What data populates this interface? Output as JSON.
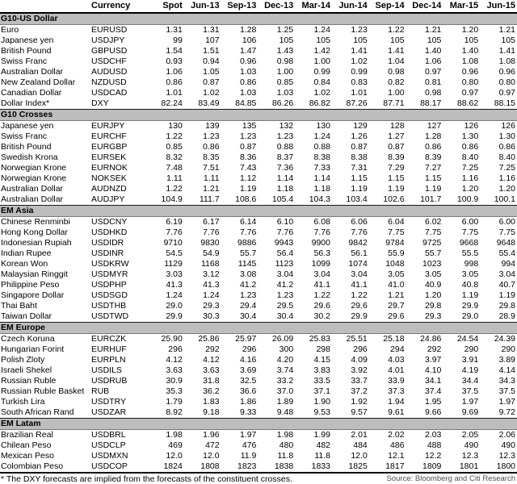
{
  "table": {
    "columns": [
      "",
      "Currency",
      "Spot",
      "Jun-13",
      "Sep-13",
      "Dec-13",
      "Mar-14",
      "Jun-14",
      "Sep-14",
      "Dec-14",
      "Mar-15",
      "Jun-15"
    ],
    "sections": [
      {
        "label": "G10-US Dollar",
        "rows": [
          {
            "name": "Euro",
            "code": "EURUSD",
            "values": [
              "1.31",
              "1.31",
              "1.28",
              "1.25",
              "1.24",
              "1.23",
              "1.22",
              "1.21",
              "1.20",
              "1.21"
            ]
          },
          {
            "name": "Japanese yen",
            "code": "USDJPY",
            "values": [
              "99",
              "107",
              "106",
              "105",
              "105",
              "105",
              "105",
              "105",
              "105",
              "105"
            ]
          },
          {
            "name": "British Pound",
            "code": "GBPUSD",
            "values": [
              "1.54",
              "1.51",
              "1.47",
              "1.43",
              "1.42",
              "1.41",
              "1.41",
              "1.40",
              "1.40",
              "1.41"
            ]
          },
          {
            "name": "Swiss Franc",
            "code": "USDCHF",
            "values": [
              "0.93",
              "0.94",
              "0.96",
              "0.98",
              "1.00",
              "1.02",
              "1.04",
              "1.06",
              "1.08",
              "1.08"
            ]
          },
          {
            "name": "Australian Dollar",
            "code": "AUDUSD",
            "values": [
              "1.06",
              "1.05",
              "1.03",
              "1.00",
              "0.99",
              "0.99",
              "0.98",
              "0.97",
              "0.96",
              "0.96"
            ]
          },
          {
            "name": "New Zealand Dollar",
            "code": "NZDUSD",
            "values": [
              "0.86",
              "0.87",
              "0.86",
              "0.85",
              "0.84",
              "0.83",
              "0.82",
              "0.81",
              "0.80",
              "0.80"
            ]
          },
          {
            "name": "Canadian Dollar",
            "code": "USDCAD",
            "values": [
              "1.01",
              "1.02",
              "1.03",
              "1.03",
              "1.02",
              "1.01",
              "1.00",
              "0.98",
              "0.97",
              "0.97"
            ]
          },
          {
            "name": "Dollar Index*",
            "code": "DXY",
            "values": [
              "82.24",
              "83.49",
              "84.85",
              "86.26",
              "86.82",
              "87.26",
              "87.71",
              "88.17",
              "88.62",
              "88.15"
            ]
          }
        ]
      },
      {
        "label": "G10 Crosses",
        "rows": [
          {
            "name": "Japanese yen",
            "code": "EURJPY",
            "values": [
              "130",
              "139",
              "135",
              "132",
              "130",
              "129",
              "128",
              "127",
              "126",
              "126"
            ]
          },
          {
            "name": "Swiss Franc",
            "code": "EURCHF",
            "values": [
              "1.22",
              "1.23",
              "1.23",
              "1.23",
              "1.24",
              "1.26",
              "1.27",
              "1.28",
              "1.30",
              "1.30"
            ]
          },
          {
            "name": "British Pound",
            "code": "EURGBP",
            "values": [
              "0.85",
              "0.86",
              "0.87",
              "0.88",
              "0.88",
              "0.87",
              "0.87",
              "0.86",
              "0.86",
              "0.86"
            ]
          },
          {
            "name": "Swedish Krona",
            "code": "EURSEK",
            "values": [
              "8.32",
              "8.35",
              "8.36",
              "8.37",
              "8.38",
              "8.38",
              "8.39",
              "8.39",
              "8.40",
              "8.40"
            ]
          },
          {
            "name": "Norwegian Krone",
            "code": "EURNOK",
            "values": [
              "7.48",
              "7.51",
              "7.43",
              "7.36",
              "7.33",
              "7.31",
              "7.29",
              "7.27",
              "7.25",
              "7.25"
            ]
          },
          {
            "name": "Norwegian Krone",
            "code": "NOKSEK",
            "values": [
              "1.11",
              "1.11",
              "1.12",
              "1.14",
              "1.14",
              "1.15",
              "1.15",
              "1.15",
              "1.16",
              "1.16"
            ]
          },
          {
            "name": "Australian Dollar",
            "code": "AUDNZD",
            "values": [
              "1.22",
              "1.21",
              "1.19",
              "1.18",
              "1.18",
              "1.19",
              "1.19",
              "1.19",
              "1.20",
              "1.20"
            ]
          },
          {
            "name": "Australian Dollar",
            "code": "AUDJPY",
            "values": [
              "104.9",
              "111.7",
              "108.6",
              "105.4",
              "104.3",
              "103.4",
              "102.6",
              "101.7",
              "100.9",
              "100.1"
            ]
          }
        ]
      },
      {
        "label": "EM Asia",
        "rows": [
          {
            "name": "Chinese Renminbi",
            "code": "USDCNY",
            "values": [
              "6.19",
              "6.17",
              "6.14",
              "6.10",
              "6.08",
              "6.06",
              "6.04",
              "6.02",
              "6.00",
              "6.00"
            ]
          },
          {
            "name": "Hong Kong Dollar",
            "code": "USDHKD",
            "values": [
              "7.76",
              "7.76",
              "7.76",
              "7.76",
              "7.76",
              "7.76",
              "7.75",
              "7.75",
              "7.75",
              "7.75"
            ]
          },
          {
            "name": "Indonesian Rupiah",
            "code": "USDIDR",
            "values": [
              "9710",
              "9830",
              "9886",
              "9943",
              "9900",
              "9842",
              "9784",
              "9725",
              "9668",
              "9648"
            ]
          },
          {
            "name": "Indian Rupee",
            "code": "USDINR",
            "values": [
              "54.5",
              "54.9",
              "55.7",
              "56.4",
              "56.3",
              "56.1",
              "55.9",
              "55.7",
              "55.5",
              "55.4"
            ]
          },
          {
            "name": "Korean Won",
            "code": "USDKRW",
            "values": [
              "1129",
              "1168",
              "1145",
              "1123",
              "1099",
              "1074",
              "1048",
              "1023",
              "998",
              "994"
            ]
          },
          {
            "name": "Malaysian Ringgit",
            "code": "USDMYR",
            "values": [
              "3.03",
              "3.12",
              "3.08",
              "3.04",
              "3.04",
              "3.04",
              "3.05",
              "3.05",
              "3.05",
              "3.04"
            ]
          },
          {
            "name": "Philippine Peso",
            "code": "USDPHP",
            "values": [
              "41.3",
              "41.3",
              "41.2",
              "41.2",
              "41.1",
              "41.1",
              "41.0",
              "40.9",
              "40.8",
              "40.7"
            ]
          },
          {
            "name": "Singapore Dollar",
            "code": "USDSGD",
            "values": [
              "1.24",
              "1.24",
              "1.23",
              "1.23",
              "1.22",
              "1.22",
              "1.21",
              "1.20",
              "1.19",
              "1.19"
            ]
          },
          {
            "name": "Thai Baht",
            "code": "USDTHB",
            "values": [
              "29.0",
              "29.3",
              "29.4",
              "29.5",
              "29.6",
              "29.6",
              "29.7",
              "29.8",
              "29.9",
              "29.8"
            ]
          },
          {
            "name": "Taiwan Dollar",
            "code": "USDTWD",
            "values": [
              "29.9",
              "30.3",
              "30.4",
              "30.4",
              "30.2",
              "29.9",
              "29.6",
              "29.3",
              "29.0",
              "28.9"
            ]
          }
        ]
      },
      {
        "label": "EM Europe",
        "rows": [
          {
            "name": "Czech Koruna",
            "code": "EURCZK",
            "values": [
              "25.90",
              "25.86",
              "25.97",
              "26.09",
              "25.83",
              "25.51",
              "25.18",
              "24.86",
              "24.54",
              "24.39"
            ]
          },
          {
            "name": "Hungarian Forint",
            "code": "EURHUF",
            "values": [
              "296",
              "292",
              "296",
              "300",
              "298",
              "296",
              "294",
              "292",
              "290",
              "290"
            ]
          },
          {
            "name": "Polish Zloty",
            "code": "EURPLN",
            "values": [
              "4.12",
              "4.12",
              "4.16",
              "4.20",
              "4.15",
              "4.09",
              "4.03",
              "3.97",
              "3.91",
              "3.89"
            ]
          },
          {
            "name": "Israeli Shekel",
            "code": "USDILS",
            "values": [
              "3.63",
              "3.63",
              "3.69",
              "3.74",
              "3.83",
              "3.92",
              "4.01",
              "4.10",
              "4.19",
              "4.14"
            ]
          },
          {
            "name": "Russian Ruble",
            "code": "USDRUB",
            "values": [
              "30.9",
              "31.8",
              "32.5",
              "33.2",
              "33.5",
              "33.7",
              "33.9",
              "34.1",
              "34.4",
              "34.3"
            ]
          },
          {
            "name": "Russian Ruble Basket",
            "code": "RUB",
            "values": [
              "35.3",
              "36.2",
              "36.6",
              "37.0",
              "37.1",
              "37.2",
              "37.3",
              "37.4",
              "37.5",
              "37.5"
            ]
          },
          {
            "name": "Turkish Lira",
            "code": "USDTRY",
            "values": [
              "1.79",
              "1.83",
              "1.86",
              "1.89",
              "1.90",
              "1.92",
              "1.94",
              "1.95",
              "1.97",
              "1.97"
            ]
          },
          {
            "name": "South African Rand",
            "code": "USDZAR",
            "values": [
              "8.92",
              "9.18",
              "9.33",
              "9.48",
              "9.53",
              "9.57",
              "9.61",
              "9.66",
              "9.69",
              "9.72"
            ]
          }
        ]
      },
      {
        "label": "EM Latam",
        "rows": [
          {
            "name": "Brazilian Real",
            "code": "USDBRL",
            "values": [
              "1.98",
              "1.96",
              "1.97",
              "1.98",
              "1.99",
              "2.01",
              "2.02",
              "2.03",
              "2.05",
              "2.06"
            ]
          },
          {
            "name": "Chilean Peso",
            "code": "USDCLP",
            "values": [
              "469",
              "472",
              "476",
              "480",
              "482",
              "484",
              "486",
              "488",
              "490",
              "490"
            ]
          },
          {
            "name": "Mexican Peso",
            "code": "USDMXN",
            "values": [
              "12.0",
              "12.0",
              "11.9",
              "11.8",
              "11.8",
              "12.0",
              "12.1",
              "12.2",
              "12.3",
              "12.3"
            ]
          },
          {
            "name": "Colombian Peso",
            "code": "USDCOP",
            "values": [
              "1824",
              "1808",
              "1823",
              "1838",
              "1833",
              "1825",
              "1817",
              "1809",
              "1801",
              "1800"
            ]
          }
        ]
      }
    ]
  },
  "footnote": "* The DXY forecasts are implied from the forecasts of the constituent crosses.",
  "source": "Source: Bloomberg and Citi Research"
}
